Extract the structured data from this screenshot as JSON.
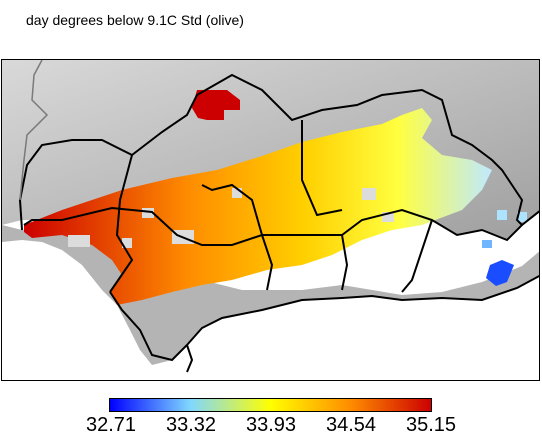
{
  "title": "day degrees below 9.1C Std (olive)",
  "colorbar": {
    "ticks": [
      "32.71",
      "33.32",
      "33.93",
      "34.54",
      "35.15"
    ],
    "colors": [
      "#0000ff",
      "#7fd7ff",
      "#ffff00",
      "#ff8c00",
      "#cc0000"
    ]
  },
  "colors": {
    "land_shade": "#bdbdbd",
    "sea": "#ffffff",
    "border": "#000000",
    "no_data_patch": "#dcdcdc"
  }
}
